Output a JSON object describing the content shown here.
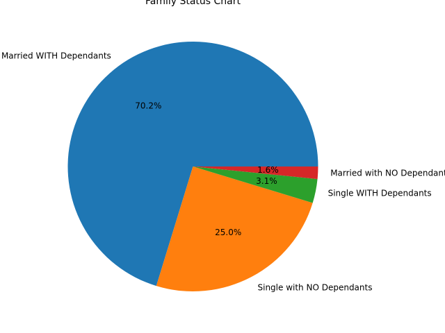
{
  "chart_data": {
    "type": "pie",
    "title": "Family Status Chart",
    "categories": [
      "Married WITH Dependants",
      "Single with NO Dependants",
      "Single WITH Dependants",
      "Married with NO Dependants"
    ],
    "values": [
      70.2,
      25.0,
      3.1,
      1.6
    ],
    "percent_labels": [
      "70.2%",
      "25.0%",
      "3.1%",
      "1.6%"
    ],
    "colors": [
      "#1f77b4",
      "#ff7f0e",
      "#2ca02c",
      "#d62728"
    ],
    "start_angle_deg": 0,
    "direction": "counterclockwise",
    "legend": "none"
  }
}
